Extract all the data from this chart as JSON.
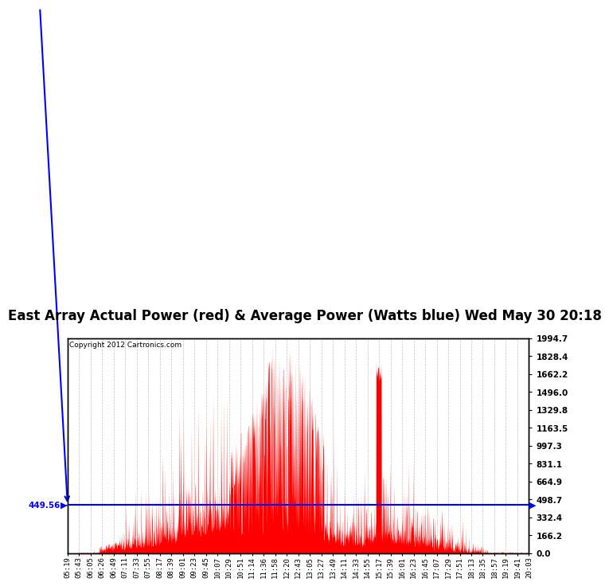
{
  "title": "East Array Actual Power (red) & Average Power (Watts blue) Wed May 30 20:18",
  "copyright": "Copyright 2012 Cartronics.com",
  "average_power": 449.56,
  "y_max": 1994.7,
  "y_min": 0.0,
  "y_ticks": [
    0.0,
    166.2,
    332.4,
    498.7,
    664.9,
    831.1,
    997.3,
    1163.5,
    1329.8,
    1496.0,
    1662.2,
    1828.4,
    1994.7
  ],
  "x_labels": [
    "05:19",
    "05:43",
    "06:05",
    "06:26",
    "06:49",
    "07:11",
    "07:33",
    "07:55",
    "08:17",
    "08:39",
    "09:01",
    "09:23",
    "09:45",
    "10:07",
    "10:29",
    "10:51",
    "11:14",
    "11:36",
    "11:58",
    "12:20",
    "12:43",
    "13:05",
    "13:27",
    "13:49",
    "14:11",
    "14:33",
    "14:55",
    "15:17",
    "15:39",
    "16:01",
    "16:23",
    "16:45",
    "17:07",
    "17:29",
    "17:51",
    "18:13",
    "18:35",
    "18:57",
    "19:19",
    "19:41",
    "20:03"
  ],
  "background_color": "#ffffff",
  "plot_bg_color": "#ffffff",
  "grid_color": "#aaaaaa",
  "bar_color": "#ff0000",
  "line_color": "#0000ff",
  "title_fontsize": 12,
  "tick_fontsize": 7.5,
  "border_color": "#000000",
  "n_points": 1800
}
